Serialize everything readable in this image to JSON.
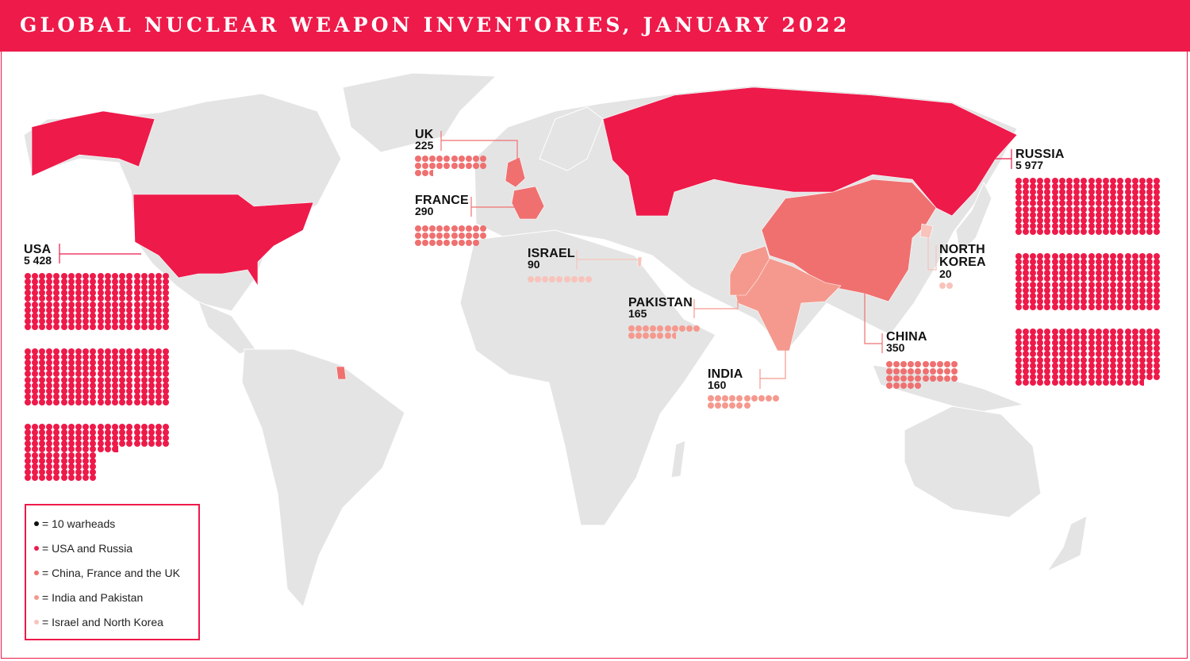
{
  "title": "GLOBAL NUCLEAR WEAPON INVENTORIES, JANUARY 2022",
  "colors": {
    "brand": "#ee1a4a",
    "usa_russia": "#ee1a4a",
    "china_france_uk": "#f07070",
    "india_pakistan": "#f5998e",
    "israel_north_korea": "#f8c3bb",
    "land": "#e4e4e4",
    "legend_unit": "#111111"
  },
  "warheads_per_dot": 10,
  "countries": [
    {
      "id": "usa",
      "name": "USA",
      "value_label": "5 428",
      "warheads": 5428,
      "tier": "usa_russia"
    },
    {
      "id": "russia",
      "name": "RUSSIA",
      "value_label": "5 977",
      "warheads": 5977,
      "tier": "usa_russia"
    },
    {
      "id": "uk",
      "name": "UK",
      "value_label": "225",
      "warheads": 225,
      "tier": "china_france_uk"
    },
    {
      "id": "france",
      "name": "FRANCE",
      "value_label": "290",
      "warheads": 290,
      "tier": "china_france_uk"
    },
    {
      "id": "israel",
      "name": "ISRAEL",
      "value_label": "90",
      "warheads": 90,
      "tier": "israel_north_korea"
    },
    {
      "id": "pakistan",
      "name": "PAKISTAN",
      "value_label": "165",
      "warheads": 165,
      "tier": "india_pakistan"
    },
    {
      "id": "india",
      "name": "INDIA",
      "value_label": "160",
      "warheads": 160,
      "tier": "india_pakistan"
    },
    {
      "id": "china",
      "name": "CHINA",
      "value_label": "350",
      "warheads": 350,
      "tier": "china_france_uk"
    },
    {
      "id": "north_korea",
      "name": "NORTH KOREA",
      "value_label": "20",
      "warheads": 20,
      "tier": "israel_north_korea"
    }
  ],
  "legend": [
    {
      "text": "= 10 warheads",
      "color_key": "legend_unit"
    },
    {
      "text": "= USA and Russia",
      "color_key": "usa_russia"
    },
    {
      "text": "= China, France and the UK",
      "color_key": "china_france_uk"
    },
    {
      "text": "= India and Pakistan",
      "color_key": "india_pakistan"
    },
    {
      "text": "= Israel and North Korea",
      "color_key": "israel_north_korea"
    }
  ]
}
